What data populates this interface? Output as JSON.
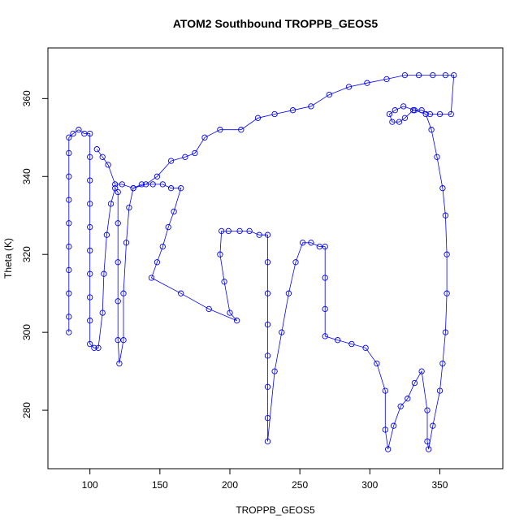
{
  "chart_data": {
    "type": "scatter",
    "title": "ATOM2 Southbound TROPPB_GEOS5",
    "xlabel": "TROPPB_GEOS5",
    "ylabel": "Theta (K)",
    "xlim": [
      70,
      395
    ],
    "ylim": [
      265,
      373
    ],
    "xticks": [
      100,
      150,
      200,
      250,
      300,
      350
    ],
    "yticks": [
      280,
      300,
      320,
      340,
      360
    ],
    "grid": false,
    "legend": "none",
    "marker": "open-circle",
    "connected": true,
    "color": "#0000ff",
    "series": [
      {
        "values": [
          [
            85,
            300
          ],
          [
            85,
            304
          ],
          [
            85,
            310
          ],
          [
            85,
            316
          ],
          [
            85,
            322
          ],
          [
            85,
            328
          ],
          [
            85,
            334
          ],
          [
            85,
            340
          ],
          [
            85,
            346
          ],
          [
            85,
            350
          ],
          [
            88,
            351
          ],
          [
            92,
            352
          ],
          [
            96,
            351
          ],
          [
            100,
            351
          ],
          [
            100,
            345
          ],
          [
            100,
            339
          ],
          [
            100,
            333
          ],
          [
            100,
            327
          ],
          [
            100,
            321
          ],
          [
            100,
            315
          ],
          [
            100,
            309
          ],
          [
            100,
            303
          ],
          [
            100,
            297
          ],
          [
            103,
            296
          ],
          [
            106,
            296
          ],
          [
            109,
            305
          ],
          [
            110,
            315
          ],
          [
            112,
            325
          ],
          [
            115,
            333
          ],
          [
            118,
            337
          ],
          [
            120,
            336
          ],
          [
            120,
            328
          ],
          [
            120,
            318
          ],
          [
            120,
            308
          ],
          [
            120,
            298
          ],
          [
            121,
            292
          ],
          [
            124,
            298
          ],
          [
            124,
            310
          ],
          [
            126,
            323
          ],
          [
            128,
            332
          ],
          [
            131,
            337
          ],
          [
            137,
            338
          ],
          [
            145,
            338
          ],
          [
            152,
            338
          ],
          [
            158,
            337
          ],
          [
            165,
            337
          ],
          [
            160,
            331
          ],
          [
            156,
            327
          ],
          [
            152,
            322
          ],
          [
            148,
            318
          ],
          [
            144,
            314
          ],
          [
            165,
            310
          ],
          [
            185,
            306
          ],
          [
            205,
            303
          ],
          [
            200,
            305
          ],
          [
            196,
            313
          ],
          [
            193,
            320
          ],
          [
            194,
            326
          ],
          [
            199,
            326
          ],
          [
            207,
            326
          ],
          [
            214,
            326
          ],
          [
            221,
            325
          ],
          [
            227,
            325
          ],
          [
            227,
            318
          ],
          [
            227,
            310
          ],
          [
            227,
            302
          ],
          [
            227,
            294
          ],
          [
            227,
            286
          ],
          [
            227,
            278
          ],
          [
            227,
            272
          ],
          [
            232,
            290
          ],
          [
            237,
            300
          ],
          [
            242,
            310
          ],
          [
            247,
            318
          ],
          [
            252,
            323
          ],
          [
            258,
            323
          ],
          [
            264,
            322
          ],
          [
            268,
            322
          ],
          [
            268,
            314
          ],
          [
            268,
            306
          ],
          [
            268,
            299
          ],
          [
            277,
            298
          ],
          [
            287,
            297
          ],
          [
            297,
            296
          ],
          [
            305,
            292
          ],
          [
            311,
            285
          ],
          [
            311,
            275
          ],
          [
            313,
            270
          ],
          [
            317,
            276
          ],
          [
            322,
            281
          ],
          [
            327,
            283
          ],
          [
            332,
            287
          ],
          [
            337,
            290
          ],
          [
            341,
            280
          ],
          [
            341,
            272
          ],
          [
            342,
            270
          ],
          [
            345,
            276
          ],
          [
            350,
            285
          ],
          [
            352,
            292
          ],
          [
            354,
            300
          ],
          [
            355,
            310
          ],
          [
            355,
            320
          ],
          [
            354,
            330
          ],
          [
            352,
            337
          ],
          [
            348,
            345
          ],
          [
            344,
            352
          ],
          [
            340,
            356
          ],
          [
            332,
            357
          ],
          [
            324,
            358
          ],
          [
            318,
            357
          ],
          [
            314,
            356
          ],
          [
            316,
            354
          ],
          [
            321,
            354
          ],
          [
            325,
            355
          ],
          [
            331,
            357
          ],
          [
            337,
            357
          ],
          [
            343,
            356
          ],
          [
            350,
            356
          ],
          [
            358,
            356
          ],
          [
            360,
            366
          ],
          [
            354,
            366
          ],
          [
            345,
            366
          ],
          [
            335,
            366
          ],
          [
            325,
            366
          ],
          [
            312,
            365
          ],
          [
            298,
            364
          ],
          [
            285,
            363
          ],
          [
            271,
            361
          ],
          [
            258,
            358
          ],
          [
            245,
            357
          ],
          [
            232,
            356
          ],
          [
            220,
            355
          ],
          [
            208,
            352
          ],
          [
            193,
            352
          ],
          [
            182,
            350
          ],
          [
            175,
            346
          ],
          [
            168,
            345
          ],
          [
            158,
            344
          ],
          [
            148,
            340
          ],
          [
            140,
            338
          ],
          [
            131,
            337
          ],
          [
            123,
            338
          ],
          [
            118,
            338
          ],
          [
            113,
            343
          ],
          [
            109,
            345
          ],
          [
            105,
            347
          ]
        ]
      }
    ]
  }
}
